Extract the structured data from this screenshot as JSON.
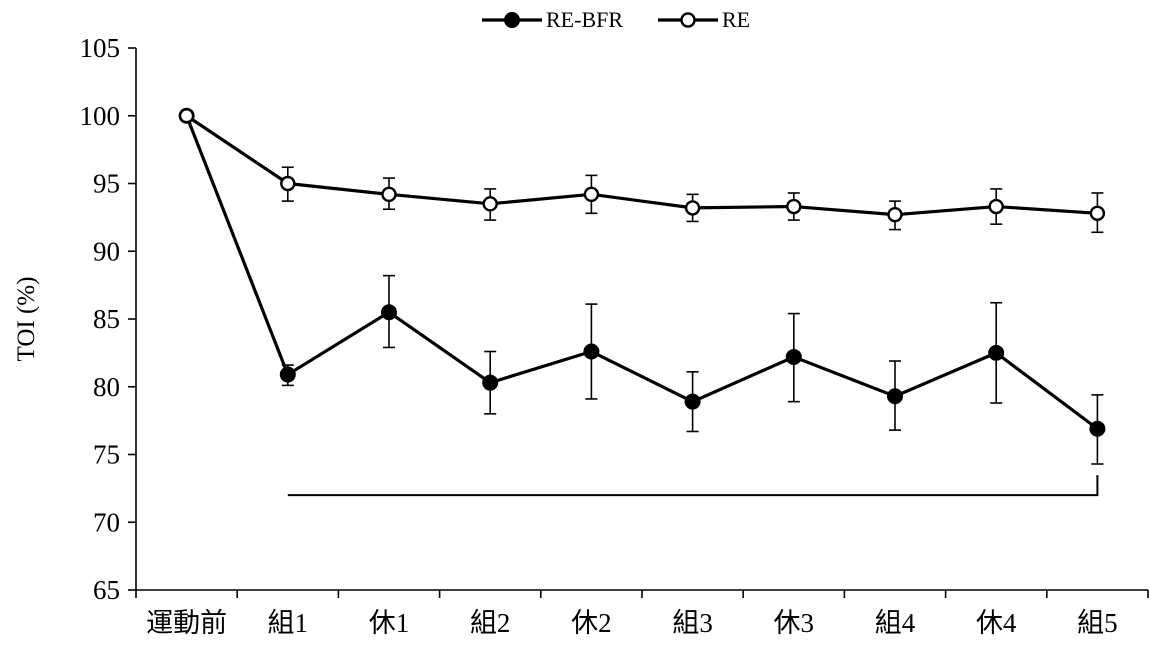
{
  "chart_data": {
    "type": "line",
    "categories": [
      "運動前",
      "組1",
      "休1",
      "組2",
      "休2",
      "組3",
      "休3",
      "組4",
      "休4",
      "組5"
    ],
    "ylabel": "TOI (%)",
    "ylim": [
      65,
      105
    ],
    "yticks": [
      65,
      70,
      75,
      80,
      85,
      90,
      95,
      100,
      105
    ],
    "legend_position": "top-center",
    "grid": false,
    "series": [
      {
        "name": "RE-BFR",
        "marker": "filled-circle",
        "values": [
          100,
          80.9,
          85.5,
          80.3,
          82.6,
          78.9,
          82.2,
          79.3,
          82.5,
          76.9
        ],
        "error_upper": [
          100,
          81.6,
          88.2,
          82.6,
          86.1,
          81.1,
          85.4,
          81.9,
          86.2,
          79.4
        ],
        "error_lower": [
          100,
          80.1,
          82.9,
          78.0,
          79.1,
          76.7,
          78.9,
          76.8,
          78.8,
          74.3
        ]
      },
      {
        "name": "RE",
        "marker": "open-circle",
        "values": [
          100,
          95.0,
          94.2,
          93.5,
          94.2,
          93.2,
          93.3,
          92.7,
          93.3,
          92.8
        ],
        "error_upper": [
          100,
          96.2,
          95.4,
          94.6,
          95.6,
          94.2,
          94.3,
          93.7,
          94.6,
          94.3
        ],
        "error_lower": [
          100,
          93.7,
          93.1,
          92.3,
          92.8,
          92.2,
          92.3,
          91.6,
          92.0,
          91.4
        ]
      }
    ],
    "annotation_bracket": {
      "from_category": "組1",
      "to_category": "組5",
      "y": 72
    }
  }
}
